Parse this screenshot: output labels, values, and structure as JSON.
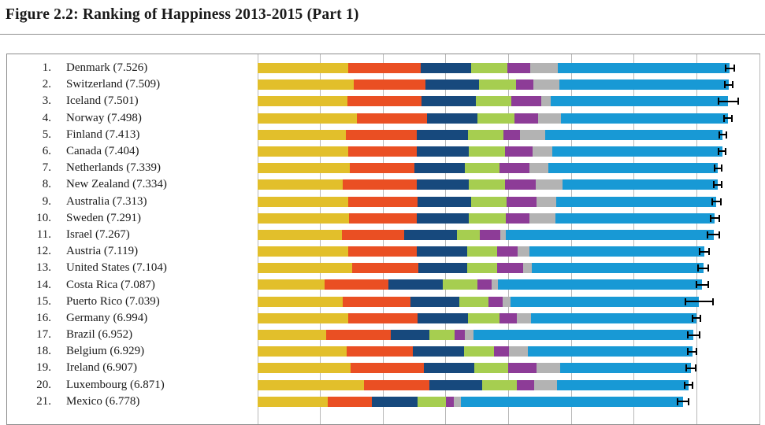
{
  "title": "Figure 2.2: Ranking of Happiness 2013-2015 (Part 1)",
  "chart_data": {
    "type": "bar",
    "orientation": "horizontal-stacked",
    "title": "Figure 2.2: Ranking of Happiness 2013-2015 (Part 1)",
    "xlabel": "",
    "ylabel": "",
    "xlim": [
      0,
      8
    ],
    "gridlines": [
      0,
      1,
      2,
      3,
      4,
      5,
      6,
      7,
      8
    ],
    "grid": "on",
    "legend": "none",
    "error_bars": "95% confidence interval whiskers at bar tips",
    "series": [
      {
        "name": "yellow",
        "color": "#e2bf2b"
      },
      {
        "name": "orange",
        "color": "#ea4f23"
      },
      {
        "name": "dark-blue",
        "color": "#17497d"
      },
      {
        "name": "light-green",
        "color": "#a6ce50"
      },
      {
        "name": "purple",
        "color": "#8d3c97"
      },
      {
        "name": "gray",
        "color": "#b3b3b3"
      },
      {
        "name": "light-blue",
        "color": "#1899d5"
      }
    ],
    "rows": [
      {
        "rank": "1.",
        "label": "Denmark (7.526)",
        "total": 7.526,
        "segments": [
          1.442,
          1.164,
          0.795,
          0.579,
          0.362,
          0.445,
          2.739
        ],
        "ci": 0.08
      },
      {
        "rank": "2.",
        "label": "Switzerland (7.509)",
        "total": 7.509,
        "segments": [
          1.527,
          1.145,
          0.863,
          0.586,
          0.281,
          0.412,
          2.695
        ],
        "ci": 0.08
      },
      {
        "rank": "3.",
        "label": "Iceland (7.501)",
        "total": 7.501,
        "segments": [
          1.427,
          1.183,
          0.867,
          0.566,
          0.477,
          0.15,
          2.831
        ],
        "ci": 0.17
      },
      {
        "rank": "4.",
        "label": "Norway (7.498)",
        "total": 7.498,
        "segments": [
          1.577,
          1.127,
          0.796,
          0.596,
          0.379,
          0.358,
          2.665
        ],
        "ci": 0.08
      },
      {
        "rank": "5.",
        "label": "Finland (7.413)",
        "total": 7.413,
        "segments": [
          1.406,
          1.135,
          0.811,
          0.571,
          0.255,
          0.41,
          2.825
        ],
        "ci": 0.07
      },
      {
        "rank": "6.",
        "label": "Canada (7.404)",
        "total": 7.404,
        "segments": [
          1.44,
          1.096,
          0.828,
          0.574,
          0.448,
          0.313,
          2.705
        ],
        "ci": 0.07
      },
      {
        "rank": "7.",
        "label": "Netherlands (7.339)",
        "total": 7.339,
        "segments": [
          1.465,
          1.029,
          0.812,
          0.552,
          0.474,
          0.299,
          2.708
        ],
        "ci": 0.07
      },
      {
        "rank": "8.",
        "label": "New Zealand (7.334)",
        "total": 7.334,
        "segments": [
          1.361,
          1.173,
          0.831,
          0.581,
          0.494,
          0.419,
          2.475
        ],
        "ci": 0.07
      },
      {
        "rank": "9.",
        "label": "Australia (7.313)",
        "total": 7.313,
        "segments": [
          1.444,
          1.105,
          0.851,
          0.568,
          0.474,
          0.323,
          2.548
        ],
        "ci": 0.08
      },
      {
        "rank": "10.",
        "label": "Sweden (7.291)",
        "total": 7.291,
        "segments": [
          1.452,
          1.088,
          0.831,
          0.582,
          0.383,
          0.409,
          2.546
        ],
        "ci": 0.08
      },
      {
        "rank": "11.",
        "label": "Israel (7.267)",
        "total": 7.267,
        "segments": [
          1.338,
          0.995,
          0.849,
          0.364,
          0.323,
          0.087,
          3.311
        ],
        "ci": 0.11
      },
      {
        "rank": "12.",
        "label": "Austria (7.119)",
        "total": 7.119,
        "segments": [
          1.45,
          1.084,
          0.806,
          0.481,
          0.329,
          0.187,
          2.782
        ],
        "ci": 0.09
      },
      {
        "rank": "13.",
        "label": "United States (7.104)",
        "total": 7.104,
        "segments": [
          1.508,
          1.048,
          0.779,
          0.482,
          0.411,
          0.149,
          2.727
        ],
        "ci": 0.09
      },
      {
        "rank": "14.",
        "label": "Costa Rica (7.087)",
        "total": 7.087,
        "segments": [
          1.069,
          1.022,
          0.86,
          0.552,
          0.226,
          0.105,
          3.253
        ],
        "ci": 0.11
      },
      {
        "rank": "15.",
        "label": "Puerto Rico (7.039)",
        "total": 7.039,
        "segments": [
          1.359,
          1.081,
          0.778,
          0.468,
          0.222,
          0.123,
          3.008
        ],
        "ci": 0.23
      },
      {
        "rank": "16.",
        "label": "Germany (6.994)",
        "total": 6.994,
        "segments": [
          1.448,
          1.098,
          0.813,
          0.495,
          0.282,
          0.218,
          2.64
        ],
        "ci": 0.08
      },
      {
        "rank": "17.",
        "label": "Brazil (6.952)",
        "total": 6.952,
        "segments": [
          1.088,
          1.039,
          0.614,
          0.404,
          0.158,
          0.142,
          3.507
        ],
        "ci": 0.11
      },
      {
        "rank": "18.",
        "label": "Belgium (6.929)",
        "total": 6.929,
        "segments": [
          1.425,
          1.052,
          0.82,
          0.467,
          0.245,
          0.295,
          2.625
        ],
        "ci": 0.08
      },
      {
        "rank": "19.",
        "label": "Ireland (6.907)",
        "total": 6.907,
        "segments": [
          1.483,
          1.162,
          0.815,
          0.54,
          0.45,
          0.371,
          2.086
        ],
        "ci": 0.09
      },
      {
        "rank": "20.",
        "label": "Luxembourg (6.871)",
        "total": 6.871,
        "segments": [
          1.698,
          1.04,
          0.845,
          0.544,
          0.276,
          0.375,
          2.093
        ],
        "ci": 0.08
      },
      {
        "rank": "21.",
        "label": "Mexico (6.778)",
        "total": 6.778,
        "segments": [
          1.115,
          0.712,
          0.719,
          0.462,
          0.117,
          0.115,
          3.538
        ],
        "ci": 0.1
      }
    ]
  }
}
